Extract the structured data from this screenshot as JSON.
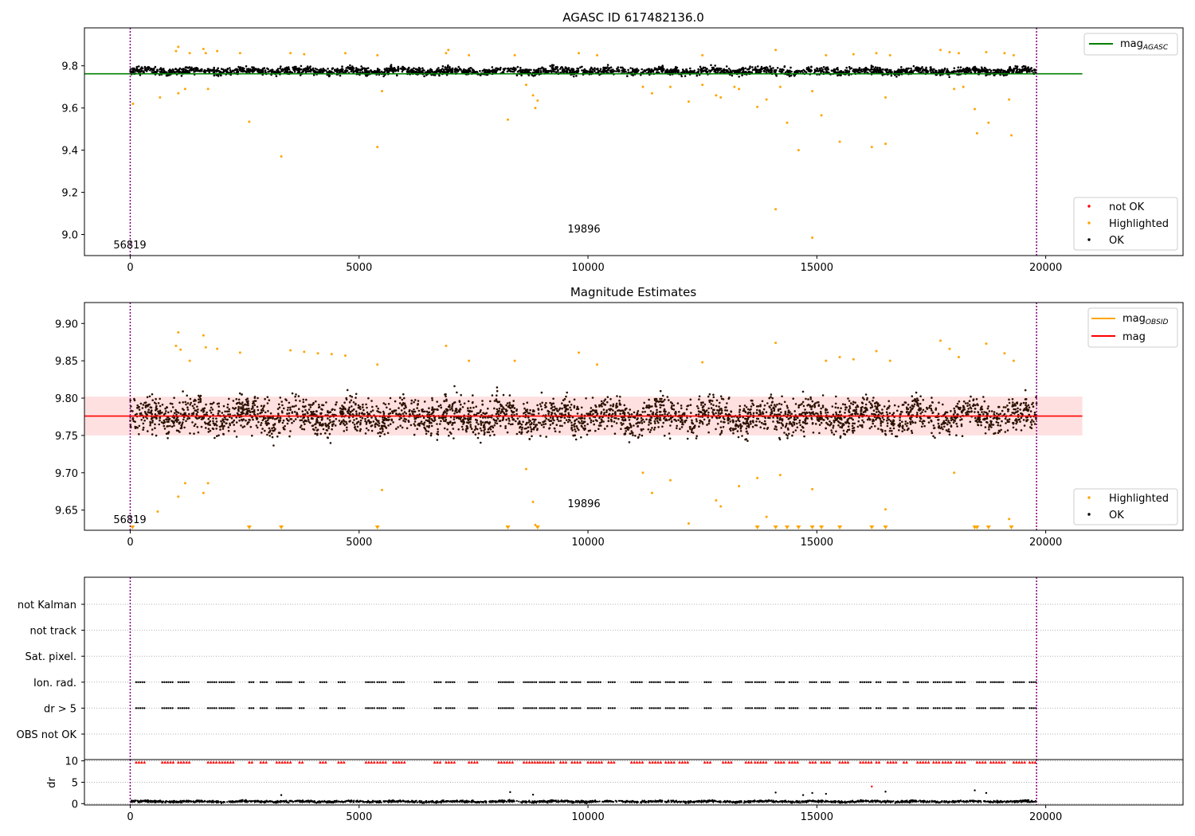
{
  "chart_data": [
    {
      "type": "scatter",
      "title": "AGASC ID 617482136.0",
      "xlim": [
        -1000,
        23000
      ],
      "ylim": [
        8.9,
        9.98
      ],
      "x_ticks": [
        0,
        5000,
        10000,
        15000,
        20000
      ],
      "y_ticks": [
        9.0,
        9.2,
        9.4,
        9.6,
        9.8
      ],
      "x_tick_labels": [
        "0",
        "5000",
        "10000",
        "15000",
        "20000"
      ],
      "y_tick_labels": [
        "9.0",
        "9.2",
        "9.4",
        "9.6",
        "9.8"
      ],
      "reference_lines": [
        {
          "label": "mag",
          "subscript": "AGASC",
          "y": 9.762,
          "x_range": [
            -1000,
            20800
          ],
          "color": "#008000"
        }
      ],
      "vlines": [
        {
          "x": 0,
          "color": "#800080"
        },
        {
          "x": 19800,
          "color": "#800080"
        }
      ],
      "annotations": [
        {
          "text": "56819",
          "x": 0,
          "y": 8.93
        },
        {
          "text": "19896",
          "x": 9900,
          "y": 9.0
        }
      ],
      "ok_band": {
        "x_range": [
          0,
          19800
        ],
        "center": 9.775,
        "half_width": 0.03,
        "color": "#000000"
      },
      "highlighted_points": [
        [
          60,
          9.62
        ],
        [
          650,
          9.65
        ],
        [
          1050,
          9.67
        ],
        [
          1200,
          9.69
        ],
        [
          1700,
          9.69
        ],
        [
          2600,
          9.535
        ],
        [
          3300,
          9.37
        ],
        [
          5400,
          9.415
        ],
        [
          5500,
          9.68
        ],
        [
          8250,
          9.545
        ],
        [
          8650,
          9.71
        ],
        [
          8800,
          9.66
        ],
        [
          8850,
          9.6
        ],
        [
          8900,
          9.635
        ],
        [
          11200,
          9.7
        ],
        [
          11400,
          9.67
        ],
        [
          11800,
          9.7
        ],
        [
          12200,
          9.63
        ],
        [
          12500,
          9.71
        ],
        [
          12800,
          9.66
        ],
        [
          12900,
          9.65
        ],
        [
          13200,
          9.7
        ],
        [
          13300,
          9.69
        ],
        [
          13700,
          9.605
        ],
        [
          13900,
          9.64
        ],
        [
          14100,
          9.12
        ],
        [
          14200,
          9.7
        ],
        [
          14350,
          9.53
        ],
        [
          14600,
          9.4
        ],
        [
          14900,
          8.985
        ],
        [
          14900,
          9.68
        ],
        [
          15100,
          9.565
        ],
        [
          15500,
          9.44
        ],
        [
          16200,
          9.415
        ],
        [
          16500,
          9.43
        ],
        [
          16500,
          9.65
        ],
        [
          18000,
          9.69
        ],
        [
          18200,
          9.7
        ],
        [
          18450,
          9.595
        ],
        [
          18500,
          9.48
        ],
        [
          18750,
          9.53
        ],
        [
          19200,
          9.64
        ],
        [
          19250,
          9.47
        ],
        [
          1000,
          9.87
        ],
        [
          1050,
          9.89
        ],
        [
          1300,
          9.86
        ],
        [
          1600,
          9.88
        ],
        [
          1650,
          9.86
        ],
        [
          1900,
          9.87
        ],
        [
          2400,
          9.86
        ],
        [
          3500,
          9.86
        ],
        [
          3800,
          9.855
        ],
        [
          4700,
          9.86
        ],
        [
          5400,
          9.85
        ],
        [
          6900,
          9.86
        ],
        [
          6950,
          9.875
        ],
        [
          7400,
          9.85
        ],
        [
          8400,
          9.85
        ],
        [
          9800,
          9.86
        ],
        [
          10200,
          9.85
        ],
        [
          12500,
          9.85
        ],
        [
          14100,
          9.875
        ],
        [
          15200,
          9.85
        ],
        [
          15800,
          9.855
        ],
        [
          16300,
          9.86
        ],
        [
          16600,
          9.85
        ],
        [
          17700,
          9.875
        ],
        [
          17900,
          9.865
        ],
        [
          18100,
          9.86
        ],
        [
          18700,
          9.865
        ],
        [
          19100,
          9.86
        ],
        [
          19300,
          9.85
        ]
      ],
      "not_ok_points": [],
      "legend": [
        {
          "label": "not OK",
          "color": "#ff0000"
        },
        {
          "label": "Highlighted",
          "color": "#ffa500"
        },
        {
          "label": "OK",
          "color": "#000000"
        }
      ]
    },
    {
      "type": "scatter",
      "title": "Magnitude Estimates",
      "xlim": [
        -1000,
        23000
      ],
      "ylim": [
        9.623,
        9.928
      ],
      "x_ticks": [
        0,
        5000,
        10000,
        15000,
        20000
      ],
      "y_ticks": [
        9.65,
        9.7,
        9.75,
        9.8,
        9.85,
        9.9
      ],
      "x_tick_labels": [
        "0",
        "5000",
        "10000",
        "15000",
        "20000"
      ],
      "y_tick_labels": [
        "9.65",
        "9.70",
        "9.75",
        "9.80",
        "9.85",
        "9.90"
      ],
      "reference_lines": [
        {
          "label": "mag",
          "y": 9.776,
          "x_range": [
            -1000,
            20800
          ],
          "color": "#ff0000"
        }
      ],
      "shaded_band": {
        "y_range": [
          9.75,
          9.802
        ],
        "x_range": [
          -1000,
          20800
        ],
        "color": "#ffcccc"
      },
      "vlines": [
        {
          "x": 0,
          "color": "#800080"
        },
        {
          "x": 19800,
          "color": "#800080"
        }
      ],
      "annotations": [
        {
          "text": "56819",
          "x": 0,
          "y": 9.633
        },
        {
          "text": "19896",
          "x": 9900,
          "y": 9.656
        }
      ],
      "ok_band": {
        "x_range": [
          0,
          19800
        ],
        "center": 9.776,
        "half_width": 0.03,
        "color": "#2b1100"
      },
      "highlighted_points": [
        [
          600,
          9.648
        ],
        [
          1050,
          9.668
        ],
        [
          1200,
          9.686
        ],
        [
          1600,
          9.673
        ],
        [
          1700,
          9.686
        ],
        [
          5500,
          9.677
        ],
        [
          8650,
          9.705
        ],
        [
          8800,
          9.661
        ],
        [
          8850,
          9.63
        ],
        [
          11200,
          9.7
        ],
        [
          11400,
          9.673
        ],
        [
          11800,
          9.69
        ],
        [
          12200,
          9.632
        ],
        [
          12800,
          9.663
        ],
        [
          12900,
          9.655
        ],
        [
          13300,
          9.682
        ],
        [
          13700,
          9.693
        ],
        [
          13900,
          9.641
        ],
        [
          14200,
          9.697
        ],
        [
          14900,
          9.678
        ],
        [
          16500,
          9.651
        ],
        [
          18000,
          9.7
        ],
        [
          19200,
          9.638
        ],
        [
          1000,
          9.87
        ],
        [
          1050,
          9.888
        ],
        [
          1100,
          9.865
        ],
        [
          1300,
          9.85
        ],
        [
          1600,
          9.884
        ],
        [
          1650,
          9.868
        ],
        [
          1900,
          9.866
        ],
        [
          2400,
          9.861
        ],
        [
          3500,
          9.864
        ],
        [
          3800,
          9.862
        ],
        [
          4100,
          9.86
        ],
        [
          4400,
          9.859
        ],
        [
          4700,
          9.857
        ],
        [
          5400,
          9.845
        ],
        [
          6900,
          9.87
        ],
        [
          7400,
          9.85
        ],
        [
          8400,
          9.85
        ],
        [
          9800,
          9.861
        ],
        [
          10200,
          9.845
        ],
        [
          12500,
          9.848
        ],
        [
          14100,
          9.874
        ],
        [
          15200,
          9.85
        ],
        [
          15500,
          9.855
        ],
        [
          15800,
          9.852
        ],
        [
          16300,
          9.863
        ],
        [
          16600,
          9.85
        ],
        [
          17700,
          9.877
        ],
        [
          17900,
          9.866
        ],
        [
          18100,
          9.855
        ],
        [
          18700,
          9.873
        ],
        [
          19100,
          9.86
        ],
        [
          19300,
          9.85
        ]
      ],
      "offscale_low_x": [
        50,
        2600,
        3300,
        5400,
        8250,
        8900,
        13700,
        14100,
        14350,
        14600,
        14900,
        15100,
        15500,
        16200,
        16500,
        18450,
        18500,
        18750,
        19250
      ],
      "legend_top": [
        {
          "label": "mag",
          "subscript": "OBSID",
          "color": "#ffa500"
        },
        {
          "label": "mag",
          "color": "#ff0000"
        }
      ],
      "legend_bottom": [
        {
          "label": "Highlighted",
          "color": "#ffa500"
        },
        {
          "label": "OK",
          "color": "#000000"
        }
      ]
    },
    {
      "type": "scatter",
      "title": "",
      "xlim": [
        -1000,
        23000
      ],
      "categories": [
        "not Kalman",
        "not track",
        "Sat. pixel.",
        "Ion. rad.",
        "dr > 5",
        "OBS not OK"
      ],
      "flag_rows": {
        "Ion. rad.": [
          [
            130,
            350
          ],
          [
            700,
            950
          ],
          [
            1050,
            1300
          ],
          [
            1700,
            1900
          ],
          [
            1950,
            2300
          ],
          [
            2600,
            2700
          ],
          [
            2850,
            3000
          ],
          [
            3200,
            3550
          ],
          [
            3700,
            3800
          ],
          [
            4150,
            4300
          ],
          [
            4550,
            4700
          ],
          [
            5150,
            5350
          ],
          [
            5400,
            5600
          ],
          [
            5750,
            6000
          ],
          [
            6650,
            6800
          ],
          [
            6900,
            7100
          ],
          [
            7400,
            7600
          ],
          [
            8050,
            8400
          ],
          [
            8600,
            8900
          ],
          [
            8950,
            9300
          ],
          [
            9400,
            9550
          ],
          [
            9650,
            9850
          ],
          [
            10000,
            10300
          ],
          [
            10450,
            10600
          ],
          [
            10950,
            11200
          ],
          [
            11350,
            11600
          ],
          [
            11700,
            11900
          ],
          [
            12000,
            12200
          ],
          [
            12550,
            12700
          ],
          [
            12950,
            13150
          ],
          [
            13450,
            13600
          ],
          [
            13650,
            13900
          ],
          [
            14100,
            14300
          ],
          [
            14400,
            14600
          ],
          [
            14850,
            15000
          ],
          [
            15100,
            15300
          ],
          [
            15500,
            15700
          ],
          [
            15950,
            16200
          ],
          [
            16300,
            16400
          ],
          [
            16550,
            16750
          ],
          [
            16900,
            17000
          ],
          [
            17200,
            17450
          ],
          [
            17550,
            17700
          ],
          [
            17750,
            17950
          ],
          [
            18050,
            18250
          ],
          [
            18500,
            18700
          ],
          [
            18800,
            19100
          ],
          [
            19300,
            19550
          ],
          [
            19650,
            19800
          ]
        ],
        "dr > 5": [
          [
            130,
            350
          ],
          [
            700,
            950
          ],
          [
            1050,
            1300
          ],
          [
            1700,
            1900
          ],
          [
            1950,
            2300
          ],
          [
            2600,
            2700
          ],
          [
            2850,
            3000
          ],
          [
            3200,
            3550
          ],
          [
            3700,
            3800
          ],
          [
            4150,
            4300
          ],
          [
            4550,
            4700
          ],
          [
            5150,
            5350
          ],
          [
            5400,
            5600
          ],
          [
            5750,
            6000
          ],
          [
            6650,
            6800
          ],
          [
            6900,
            7100
          ],
          [
            7400,
            7600
          ],
          [
            8050,
            8400
          ],
          [
            8600,
            8900
          ],
          [
            8950,
            9300
          ],
          [
            9400,
            9550
          ],
          [
            9650,
            9850
          ],
          [
            10000,
            10300
          ],
          [
            10450,
            10600
          ],
          [
            10950,
            11200
          ],
          [
            11350,
            11600
          ],
          [
            11700,
            11900
          ],
          [
            12000,
            12200
          ],
          [
            12550,
            12700
          ],
          [
            12950,
            13150
          ],
          [
            13450,
            13600
          ],
          [
            13650,
            13900
          ],
          [
            14100,
            14300
          ],
          [
            14400,
            14600
          ],
          [
            14850,
            15000
          ],
          [
            15100,
            15300
          ],
          [
            15500,
            15700
          ],
          [
            15950,
            16200
          ],
          [
            16300,
            16400
          ],
          [
            16550,
            16750
          ],
          [
            16900,
            17000
          ],
          [
            17200,
            17450
          ],
          [
            17550,
            17700
          ],
          [
            17750,
            17950
          ],
          [
            18050,
            18250
          ],
          [
            18500,
            18700
          ],
          [
            18800,
            19100
          ],
          [
            19300,
            19550
          ],
          [
            19650,
            19800
          ]
        ]
      },
      "vlines": [
        {
          "x": 0,
          "color": "#800080"
        },
        {
          "x": 19800,
          "color": "#800080"
        }
      ],
      "grid": true
    },
    {
      "type": "scatter",
      "title": "",
      "ylabel": "dr",
      "xlim": [
        -1000,
        23000
      ],
      "ylim": [
        -0.3,
        10.3
      ],
      "x_ticks": [
        0,
        5000,
        10000,
        15000,
        20000
      ],
      "y_ticks": [
        0,
        5,
        10
      ],
      "x_tick_labels": [
        "0",
        "5000",
        "10000",
        "15000",
        "20000"
      ],
      "y_tick_labels": [
        "0",
        "5",
        "10"
      ],
      "capped_markers": {
        "y": 9.7,
        "color": "#ff0000",
        "note": "points above axis shown as red markers at the top"
      },
      "dr_band": {
        "x_range": [
          0,
          19800
        ],
        "center": 0.5,
        "half_width": 0.45,
        "color": "#000000"
      },
      "scattered_points": [
        [
          3300,
          2.0
        ],
        [
          8300,
          2.7
        ],
        [
          8800,
          2.1
        ],
        [
          14100,
          2.6
        ],
        [
          14700,
          2.0
        ],
        [
          14900,
          2.5
        ],
        [
          15200,
          2.3
        ],
        [
          16200,
          4.0
        ],
        [
          16500,
          2.8
        ],
        [
          18450,
          3.1
        ],
        [
          18700,
          2.5
        ]
      ],
      "vlines": [
        {
          "x": 0,
          "color": "#800080"
        },
        {
          "x": 19800,
          "color": "#800080"
        }
      ],
      "grid": true
    }
  ]
}
